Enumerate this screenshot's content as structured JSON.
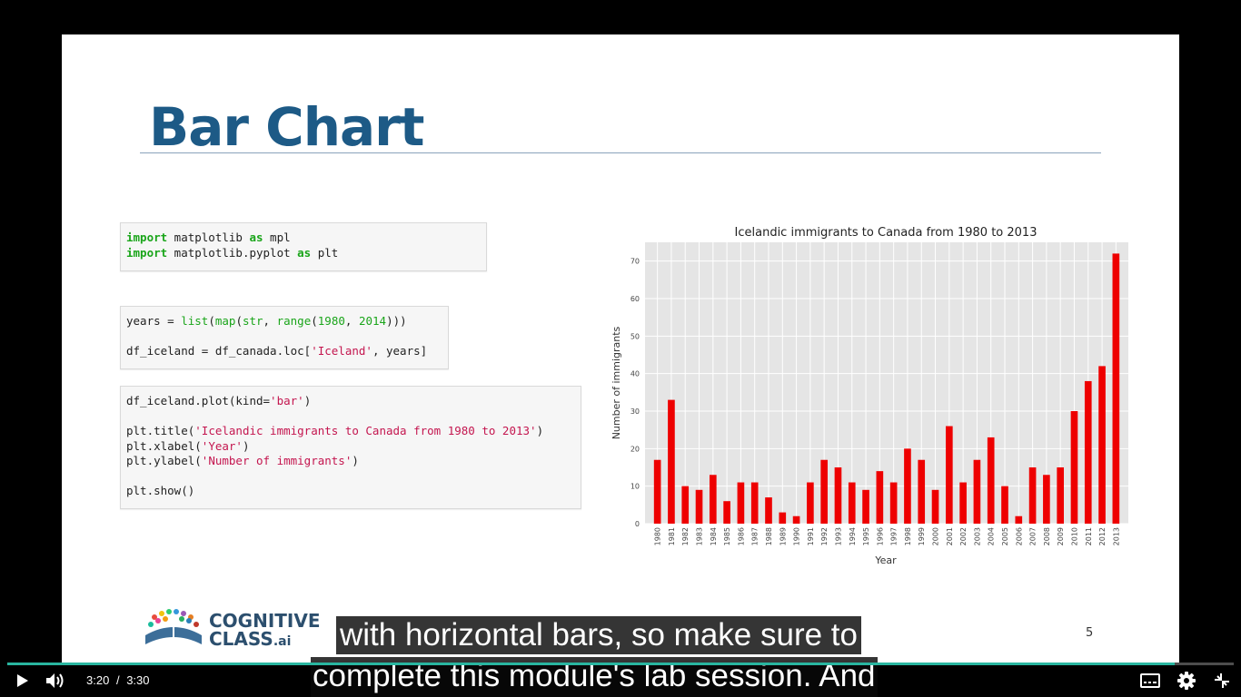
{
  "slide": {
    "title": "Bar Chart",
    "page_number": "5",
    "logo": {
      "line1": "COGNITIVE",
      "line2": "CLASS",
      "suffix": ".ai"
    }
  },
  "code_blocks": [
    {
      "lines": [
        [
          [
            "kw",
            "import"
          ],
          [
            "t",
            " matplotlib "
          ],
          [
            "kw",
            "as"
          ],
          [
            "t",
            " mpl"
          ]
        ],
        [
          [
            "kw",
            "import"
          ],
          [
            "t",
            " matplotlib.pyplot "
          ],
          [
            "kw",
            "as"
          ],
          [
            "t",
            " plt"
          ]
        ]
      ]
    },
    {
      "lines": [
        [
          [
            "t",
            "years = "
          ],
          [
            "fn",
            "list"
          ],
          [
            "t",
            "("
          ],
          [
            "fn",
            "map"
          ],
          [
            "t",
            "("
          ],
          [
            "fn",
            "str"
          ],
          [
            "t",
            ", "
          ],
          [
            "fn",
            "range"
          ],
          [
            "t",
            "("
          ],
          [
            "num",
            "1980"
          ],
          [
            "t",
            ", "
          ],
          [
            "num",
            "2014"
          ],
          [
            "t",
            ")))"
          ]
        ],
        [
          [
            "t",
            ""
          ]
        ],
        [
          [
            "t",
            "df_iceland = df_canada.loc["
          ],
          [
            "str",
            "'Iceland'"
          ],
          [
            "t",
            ", years]"
          ]
        ]
      ]
    },
    {
      "lines": [
        [
          [
            "t",
            "df_iceland.plot(kind="
          ],
          [
            "str",
            "'bar'"
          ],
          [
            "t",
            ")"
          ]
        ],
        [
          [
            "t",
            ""
          ]
        ],
        [
          [
            "t",
            "plt.title("
          ],
          [
            "str",
            "'Icelandic immigrants to Canada from 1980 to 2013'"
          ],
          [
            "t",
            ")"
          ]
        ],
        [
          [
            "t",
            "plt.xlabel("
          ],
          [
            "str",
            "'Year'"
          ],
          [
            "t",
            ")"
          ]
        ],
        [
          [
            "t",
            "plt.ylabel("
          ],
          [
            "str",
            "'Number of immigrants'"
          ],
          [
            "t",
            ")"
          ]
        ],
        [
          [
            "t",
            ""
          ]
        ],
        [
          [
            "t",
            "plt.show()"
          ]
        ]
      ]
    }
  ],
  "chart_data": {
    "type": "bar",
    "title": "Icelandic immigrants to Canada from 1980 to 2013",
    "xlabel": "Year",
    "ylabel": "Number of immigrants",
    "categories": [
      "1980",
      "1981",
      "1982",
      "1983",
      "1984",
      "1985",
      "1986",
      "1987",
      "1988",
      "1989",
      "1990",
      "1991",
      "1992",
      "1993",
      "1994",
      "1995",
      "1996",
      "1997",
      "1998",
      "1999",
      "2000",
      "2001",
      "2002",
      "2003",
      "2004",
      "2005",
      "2006",
      "2007",
      "2008",
      "2009",
      "2010",
      "2011",
      "2012",
      "2013"
    ],
    "values": [
      17,
      33,
      10,
      9,
      13,
      6,
      11,
      11,
      7,
      3,
      2,
      11,
      17,
      15,
      11,
      9,
      14,
      11,
      20,
      17,
      9,
      26,
      11,
      17,
      23,
      10,
      2,
      15,
      13,
      15,
      30,
      38,
      42,
      72
    ],
    "yticks": [
      "0",
      "10",
      "20",
      "30",
      "40",
      "50",
      "60",
      "70"
    ],
    "ylim": [
      0,
      75
    ],
    "bar_color": "#ee0000",
    "grid": true,
    "background": "#e5e5e5"
  },
  "subtitles": {
    "line1": "with horizontal bars, so make sure to",
    "line2": "complete this module's lab session. And"
  },
  "player": {
    "current_time": "3:20",
    "separator": "/",
    "duration": "3:30",
    "progress_fraction": 0.952,
    "accent": "#29b6a0"
  },
  "icons": {
    "play": "play-icon",
    "volume": "volume-icon",
    "captions": "captions-icon",
    "settings": "gear-icon",
    "exit_fullscreen": "exit-fullscreen-icon"
  }
}
